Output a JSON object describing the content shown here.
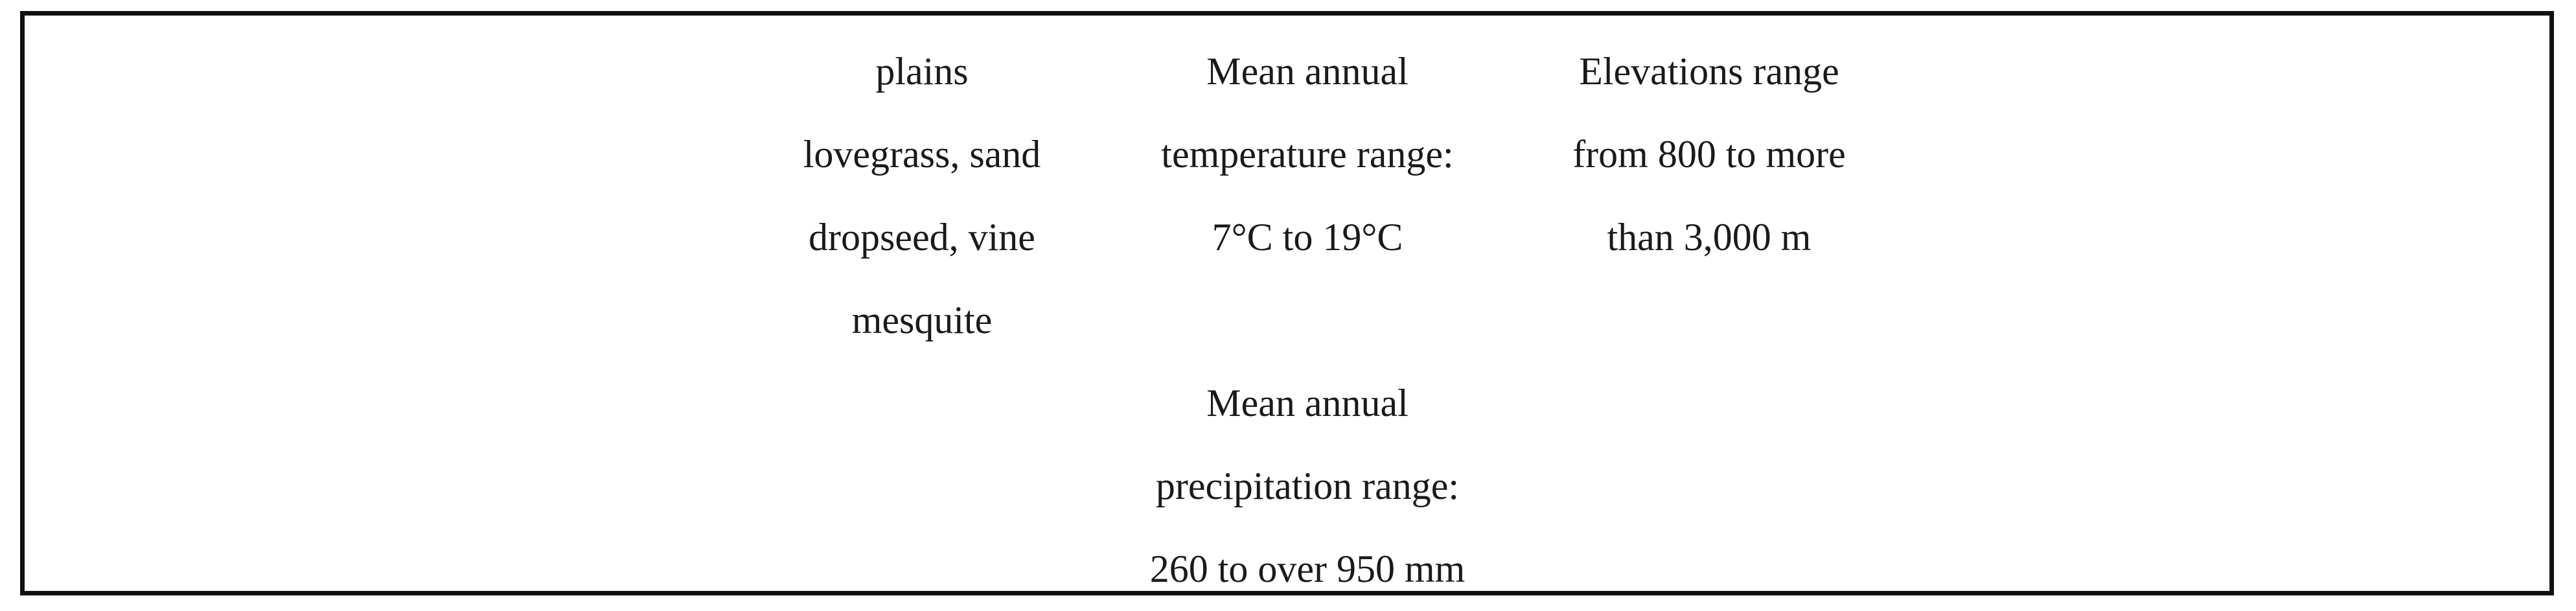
{
  "table_fragment": {
    "vegetation_cell": {
      "lines": [
        "plains",
        "lovegrass, sand",
        "dropseed, vine",
        "mesquite"
      ]
    },
    "climate_cell": {
      "lines": [
        "Mean annual",
        "temperature range:",
        "7°C to 19°C",
        "",
        "Mean annual",
        "precipitation range:",
        "260 to over 950 mm"
      ]
    },
    "elevation_cell": {
      "lines": [
        "Elevations range",
        "from 800 to more",
        "than 3,000 m"
      ]
    }
  }
}
